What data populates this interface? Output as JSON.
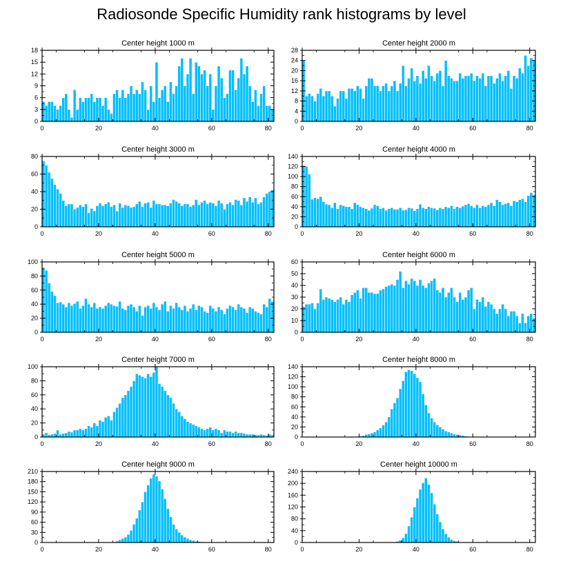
{
  "title": "Radiosonde Specific Humidity rank histograms by level",
  "colors": {
    "bar": "#00BFFF",
    "bar_edge": "#ffffff",
    "axis": "#000000"
  },
  "chart_data": [
    {
      "type": "bar",
      "title": "Center height 1000 m",
      "xlim": [
        0,
        82
      ],
      "ylim": [
        0,
        18
      ],
      "xticks": [
        0,
        20,
        40,
        60,
        80
      ],
      "yticks": [
        0,
        3,
        6,
        9,
        12,
        15,
        18
      ],
      "values": [
        5,
        4,
        5,
        5,
        4,
        3,
        4,
        6,
        7,
        3,
        1,
        8,
        3,
        6,
        5,
        6,
        6,
        7,
        5,
        6,
        6,
        4,
        6,
        3,
        2,
        7,
        8,
        6,
        8,
        6,
        7,
        9,
        7,
        8,
        7,
        10,
        8,
        3,
        9,
        5,
        15,
        6,
        8,
        9,
        5,
        10,
        7,
        9,
        14,
        16,
        9,
        12,
        16,
        7,
        15,
        14,
        12,
        13,
        9,
        12,
        3,
        9,
        14,
        11,
        6,
        7,
        13,
        13,
        8,
        11,
        16,
        12,
        14,
        9,
        5,
        8,
        4,
        7,
        9,
        4,
        4,
        3
      ]
    },
    {
      "type": "bar",
      "title": "Center height 2000 m",
      "xlim": [
        0,
        82
      ],
      "ylim": [
        0,
        28
      ],
      "xticks": [
        0,
        20,
        40,
        60,
        80
      ],
      "yticks": [
        0,
        4,
        8,
        12,
        16,
        20,
        24,
        28
      ],
      "values": [
        24,
        10,
        11,
        10,
        8,
        11,
        13,
        10,
        12,
        12,
        10,
        6,
        9,
        12,
        12,
        9,
        13,
        13,
        12,
        14,
        13,
        9,
        14,
        17,
        17,
        14,
        14,
        12,
        14,
        15,
        12,
        14,
        16,
        12,
        15,
        22,
        14,
        17,
        21,
        16,
        18,
        15,
        20,
        17,
        22,
        18,
        16,
        19,
        20,
        14,
        24,
        18,
        17,
        16,
        16,
        19,
        17,
        18,
        18,
        19,
        16,
        18,
        17,
        19,
        14,
        18,
        18,
        15,
        17,
        19,
        16,
        18,
        20,
        13,
        18,
        17,
        21,
        19,
        26,
        22,
        25,
        24
      ]
    },
    {
      "type": "bar",
      "title": "Center height 3000 m",
      "xlim": [
        0,
        82
      ],
      "ylim": [
        0,
        80
      ],
      "xticks": [
        0,
        20,
        40,
        60,
        80
      ],
      "yticks": [
        0,
        20,
        40,
        60,
        80
      ],
      "values": [
        75,
        70,
        62,
        55,
        48,
        43,
        38,
        30,
        24,
        26,
        26,
        20,
        22,
        25,
        23,
        26,
        16,
        21,
        18,
        24,
        27,
        24,
        26,
        28,
        23,
        25,
        18,
        27,
        22,
        25,
        24,
        22,
        23,
        26,
        29,
        23,
        27,
        28,
        22,
        30,
        26,
        26,
        25,
        25,
        24,
        27,
        31,
        29,
        27,
        24,
        26,
        26,
        23,
        25,
        31,
        25,
        28,
        30,
        26,
        28,
        27,
        24,
        30,
        27,
        20,
        26,
        28,
        25,
        31,
        30,
        25,
        33,
        29,
        34,
        28,
        33,
        26,
        28,
        34,
        38,
        40,
        42
      ]
    },
    {
      "type": "bar",
      "title": "Center height 4000 m",
      "xlim": [
        0,
        82
      ],
      "ylim": [
        0,
        140
      ],
      "xticks": [
        0,
        20,
        40,
        60,
        80
      ],
      "yticks": [
        0,
        20,
        40,
        60,
        80,
        100,
        120,
        140
      ],
      "values": [
        122,
        120,
        105,
        55,
        58,
        56,
        60,
        50,
        45,
        44,
        38,
        48,
        36,
        44,
        42,
        40,
        40,
        36,
        48,
        44,
        40,
        38,
        36,
        33,
        37,
        44,
        42,
        36,
        38,
        33,
        36,
        38,
        35,
        35,
        38,
        33,
        34,
        38,
        37,
        32,
        36,
        45,
        38,
        36,
        40,
        38,
        37,
        34,
        38,
        36,
        40,
        38,
        42,
        36,
        40,
        38,
        41,
        44,
        46,
        42,
        38,
        44,
        38,
        42,
        40,
        44,
        48,
        42,
        54,
        50,
        44,
        46,
        48,
        42,
        52,
        50,
        54,
        56,
        50,
        62,
        68,
        64
      ]
    },
    {
      "type": "bar",
      "title": "Center height 5000 m",
      "xlim": [
        0,
        82
      ],
      "ylim": [
        0,
        100
      ],
      "xticks": [
        0,
        20,
        40,
        60,
        80
      ],
      "yticks": [
        0,
        20,
        40,
        60,
        80,
        100
      ],
      "values": [
        92,
        88,
        70,
        58,
        52,
        42,
        43,
        40,
        36,
        42,
        38,
        41,
        44,
        34,
        38,
        48,
        40,
        36,
        42,
        34,
        36,
        34,
        38,
        42,
        40,
        38,
        37,
        44,
        34,
        32,
        38,
        40,
        36,
        30,
        38,
        24,
        36,
        38,
        34,
        42,
        36,
        32,
        40,
        44,
        30,
        38,
        34,
        42,
        36,
        32,
        38,
        30,
        34,
        40,
        32,
        38,
        36,
        30,
        28,
        38,
        34,
        30,
        36,
        32,
        26,
        34,
        38,
        36,
        32,
        40,
        36,
        34,
        28,
        36,
        34,
        30,
        28,
        26,
        40,
        36,
        48,
        44
      ]
    },
    {
      "type": "bar",
      "title": "Center height 6000 m",
      "xlim": [
        0,
        82
      ],
      "ylim": [
        0,
        60
      ],
      "xticks": [
        0,
        20,
        40,
        60,
        80
      ],
      "yticks": [
        0,
        10,
        20,
        30,
        40,
        50,
        60
      ],
      "values": [
        22,
        24,
        24,
        25,
        20,
        25,
        37,
        28,
        30,
        29,
        28,
        26,
        28,
        30,
        24,
        28,
        26,
        32,
        34,
        36,
        29,
        38,
        38,
        34,
        34,
        33,
        33,
        36,
        37,
        39,
        40,
        41,
        40,
        45,
        52,
        38,
        44,
        41,
        46,
        44,
        40,
        45,
        40,
        38,
        42,
        44,
        46,
        36,
        34,
        38,
        30,
        34,
        38,
        30,
        26,
        34,
        28,
        30,
        36,
        38,
        20,
        28,
        26,
        30,
        22,
        26,
        24,
        20,
        16,
        20,
        24,
        20,
        14,
        18,
        18,
        14,
        8,
        16,
        8,
        14,
        16,
        12
      ]
    },
    {
      "type": "bar",
      "title": "Center height 7000 m",
      "xlim": [
        0,
        82
      ],
      "ylim": [
        0,
        100
      ],
      "xticks": [
        0,
        20,
        40,
        60,
        80
      ],
      "yticks": [
        0,
        20,
        40,
        60,
        80,
        100
      ],
      "values": [
        4,
        6,
        3,
        4,
        5,
        10,
        4,
        5,
        6,
        8,
        7,
        10,
        10,
        12,
        10,
        12,
        16,
        14,
        20,
        16,
        24,
        22,
        28,
        30,
        24,
        36,
        42,
        48,
        56,
        60,
        66,
        72,
        80,
        90,
        88,
        86,
        84,
        90,
        86,
        92,
        100,
        76,
        72,
        66,
        60,
        56,
        48,
        40,
        36,
        30,
        26,
        22,
        20,
        18,
        16,
        14,
        12,
        10,
        12,
        14,
        10,
        12,
        10,
        6,
        10,
        8,
        8,
        6,
        8,
        6,
        6,
        5,
        4,
        4,
        4,
        3,
        3,
        4,
        3,
        2,
        4,
        3
      ]
    },
    {
      "type": "bar",
      "title": "Center height 8000 m",
      "xlim": [
        0,
        82
      ],
      "ylim": [
        0,
        140
      ],
      "xticks": [
        0,
        20,
        40,
        60,
        80
      ],
      "yticks": [
        0,
        20,
        40,
        60,
        80,
        100,
        120,
        140
      ],
      "values": [
        0,
        0,
        0,
        0,
        0,
        0,
        0,
        0,
        0,
        0,
        0,
        0,
        0,
        0,
        0,
        0,
        0,
        0,
        1,
        1,
        2,
        3,
        5,
        6,
        8,
        10,
        14,
        18,
        24,
        30,
        40,
        56,
        68,
        78,
        96,
        112,
        130,
        134,
        132,
        126,
        118,
        110,
        86,
        64,
        48,
        38,
        30,
        24,
        20,
        16,
        12,
        10,
        8,
        6,
        5,
        4,
        3,
        2,
        1,
        1,
        0,
        0,
        0,
        0,
        0,
        0,
        0,
        0,
        0,
        0,
        0,
        0,
        0,
        0,
        0,
        0,
        0,
        0,
        0,
        0,
        0,
        0
      ]
    },
    {
      "type": "bar",
      "title": "Center height 9000 m",
      "xlim": [
        0,
        82
      ],
      "ylim": [
        0,
        210
      ],
      "xticks": [
        0,
        20,
        40,
        60,
        80
      ],
      "yticks": [
        0,
        30,
        60,
        90,
        120,
        150,
        180,
        210
      ],
      "values": [
        0,
        0,
        0,
        0,
        0,
        0,
        0,
        0,
        0,
        0,
        0,
        0,
        0,
        0,
        0,
        0,
        0,
        0,
        0,
        0,
        0,
        0,
        0,
        0,
        0,
        2,
        4,
        8,
        12,
        16,
        24,
        36,
        54,
        72,
        96,
        120,
        150,
        170,
        190,
        202,
        196,
        182,
        158,
        130,
        100,
        76,
        54,
        40,
        30,
        22,
        16,
        12,
        8,
        6,
        4,
        3,
        2,
        2,
        1,
        1,
        0,
        0,
        0,
        0,
        0,
        0,
        0,
        0,
        0,
        0,
        0,
        0,
        0,
        0,
        0,
        0,
        0,
        0,
        0,
        0,
        0,
        0
      ]
    },
    {
      "type": "bar",
      "title": "Center height 10000 m",
      "xlim": [
        0,
        82
      ],
      "ylim": [
        0,
        240
      ],
      "xticks": [
        0,
        20,
        40,
        60,
        80
      ],
      "yticks": [
        0,
        40,
        80,
        120,
        160,
        200,
        240
      ],
      "values": [
        0,
        0,
        0,
        0,
        0,
        0,
        0,
        0,
        0,
        0,
        0,
        0,
        0,
        0,
        0,
        0,
        0,
        0,
        0,
        0,
        0,
        0,
        0,
        0,
        0,
        0,
        0,
        0,
        0,
        0,
        0,
        0,
        2,
        4,
        8,
        16,
        30,
        56,
        86,
        120,
        150,
        180,
        202,
        218,
        196,
        168,
        130,
        96,
        70,
        46,
        30,
        18,
        10,
        6,
        4,
        2,
        2,
        1,
        1,
        0,
        0,
        0,
        0,
        0,
        0,
        0,
        0,
        0,
        0,
        0,
        0,
        0,
        0,
        0,
        0,
        0,
        0,
        0,
        0,
        0,
        0,
        0
      ]
    }
  ]
}
